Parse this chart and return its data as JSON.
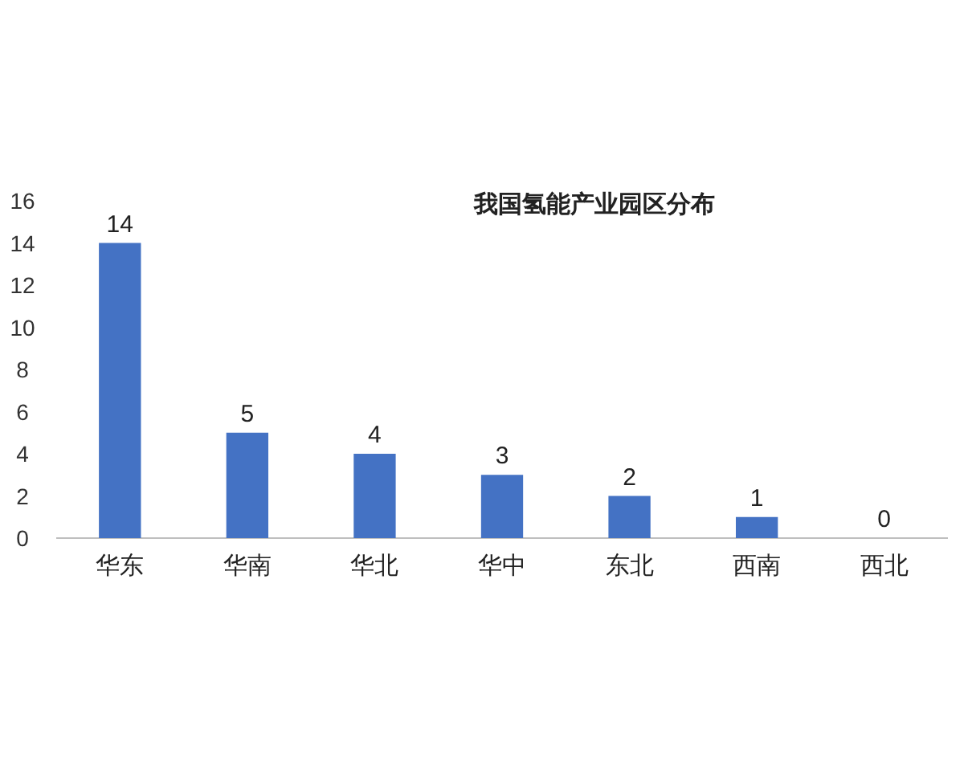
{
  "chart_data": {
    "type": "bar",
    "title": "我国氢能产业园区分布",
    "categories": [
      "华东",
      "华南",
      "华北",
      "华中",
      "东北",
      "西南",
      "西北"
    ],
    "values": [
      14,
      5,
      4,
      3,
      2,
      1,
      0
    ],
    "color": "#4472c4",
    "ylim": [
      0,
      16
    ],
    "yticks": [
      0,
      2,
      4,
      6,
      8,
      10,
      12,
      14,
      16
    ],
    "data_labels": true
  }
}
